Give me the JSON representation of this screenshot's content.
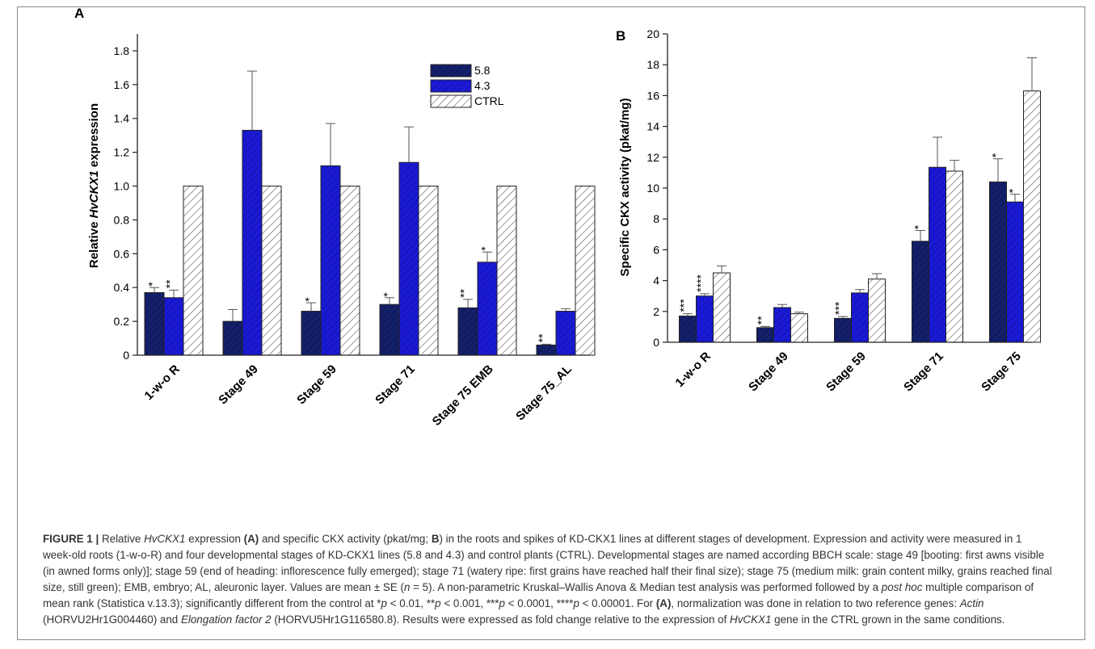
{
  "chart_data": [
    {
      "type": "bar",
      "panel_label": "A",
      "ylabel_prefix": "Relative ",
      "ylabel_italic": "HvCKX1",
      "ylabel_suffix": " expression",
      "xlabel": "",
      "ylim": [
        0,
        1.9
      ],
      "yticks": [
        "0",
        "0.2",
        "0.4",
        "0.6",
        "0.8",
        "1.0",
        "1.2",
        "1.4",
        "1.6",
        "1.8"
      ],
      "categories": [
        "1-w-o R",
        "Stage 49",
        "Stage 59",
        "Stage 71",
        "Stage 75 EMB",
        "Stage 75_AL"
      ],
      "series": [
        {
          "name": "5.8",
          "values": [
            0.37,
            0.2,
            0.26,
            0.3,
            0.28,
            0.06
          ],
          "errors": [
            0.03,
            0.07,
            0.05,
            0.04,
            0.05,
            0.005
          ],
          "significance": [
            "*",
            "",
            "*",
            "*",
            "**",
            "**"
          ]
        },
        {
          "name": "4.3",
          "values": [
            0.34,
            1.33,
            1.12,
            1.14,
            0.55,
            0.26
          ],
          "errors": [
            0.045,
            0.35,
            0.25,
            0.21,
            0.06,
            0.015
          ],
          "significance": [
            "**",
            "",
            "",
            "",
            "*",
            ""
          ]
        },
        {
          "name": "CTRL",
          "values": [
            1.0,
            1.0,
            1.0,
            1.0,
            1.0,
            1.0
          ],
          "errors": [
            0,
            0,
            0,
            0,
            0,
            0
          ],
          "significance": [
            "",
            "",
            "",
            "",
            "",
            ""
          ]
        }
      ],
      "legend_placement": "top-right",
      "grid": false
    },
    {
      "type": "bar",
      "panel_label": "B",
      "ylabel": "Specific CKX activity (pkat/mg)",
      "xlabel": "",
      "ylim": [
        0,
        20
      ],
      "yticks": [
        "0",
        "2",
        "4",
        "6",
        "8",
        "10",
        "12",
        "14",
        "16",
        "18",
        "20"
      ],
      "categories": [
        "1-w-o R",
        "Stage 49",
        "Stage 59",
        "Stage 71",
        "Stage 75"
      ],
      "series": [
        {
          "name": "5.8",
          "values": [
            1.7,
            0.95,
            1.55,
            6.55,
            10.4
          ],
          "errors": [
            0.15,
            0.08,
            0.12,
            0.7,
            1.5
          ],
          "significance": [
            "***",
            "**",
            "***",
            "*",
            "*"
          ]
        },
        {
          "name": "4.3",
          "values": [
            3.0,
            2.25,
            3.2,
            11.35,
            9.1
          ],
          "errors": [
            0.15,
            0.2,
            0.22,
            1.95,
            0.5
          ],
          "significance": [
            "****",
            "",
            "",
            "",
            "*"
          ]
        },
        {
          "name": "CTRL",
          "values": [
            4.5,
            1.85,
            4.1,
            11.1,
            16.3
          ],
          "errors": [
            0.45,
            0.1,
            0.35,
            0.7,
            2.15
          ],
          "significance": [
            "",
            "",
            "",
            "",
            ""
          ]
        }
      ],
      "legend_placement": "none",
      "grid": false
    }
  ],
  "colors": {
    "series_5_8": "#14206b",
    "series_4_3": "#1a1ad6",
    "ctrl_hatch": "#4a4a4a",
    "caption_label": "#333333"
  },
  "caption": {
    "label": "FIGURE 1 |",
    "s1a": " Relative ",
    "s1b": "HvCKX1",
    "s1c": " expression ",
    "s1d": "(A)",
    "s1e": " and specific CKX activity (pkat/mg; ",
    "s1f": "B",
    "s1g": ") in the roots and spikes of KD-CKX1 lines at different stages of development. Expression and activity were measured in 1 week-old roots (1-w-o-R) and four developmental stages of KD-CKX1 lines (5.8 and 4.3) and control plants (CTRL). Developmental stages are named according BBCH scale: stage 49 [booting: first awns visible (in awned forms only)]; stage 59 (end of heading: inflorescence fully emerged); stage 71 (watery ripe: first grains have reached half their final size); stage 75 (medium milk: grain content milky, grains reached final size, still green); EMB, embryo; AL, aleuronic layer. Values are mean ± SE (",
    "s1h": "n",
    "s1i": " = 5). A non-parametric Kruskal–Wallis Anova & Median test analysis was performed followed by a ",
    "s1j": "post hoc",
    "s1k": " multiple comparison of mean rank (Statistica v.13.3); significantly different from the control at *",
    "p1": "p",
    "s1l": " < 0.01, **",
    "p2": "p",
    "s1m": " < 0.001, ***",
    "p3": "p",
    "s1n": " < 0.0001, ****",
    "p4": "p",
    "s1o": " < 0.00001. For ",
    "s1p": "(A)",
    "s1q": ", normalization was done in relation to two reference genes: ",
    "s1r": "Actin",
    "s1s": " (HORVU2Hr1G004460) and ",
    "s1t": "Elongation factor 2",
    "s1u": " (HORVU5Hr1G116580.8). Results were expressed as fold change relative to the expression of ",
    "s1v": "HvCKX1",
    "s1w": " gene in the CTRL grown in the same conditions."
  }
}
